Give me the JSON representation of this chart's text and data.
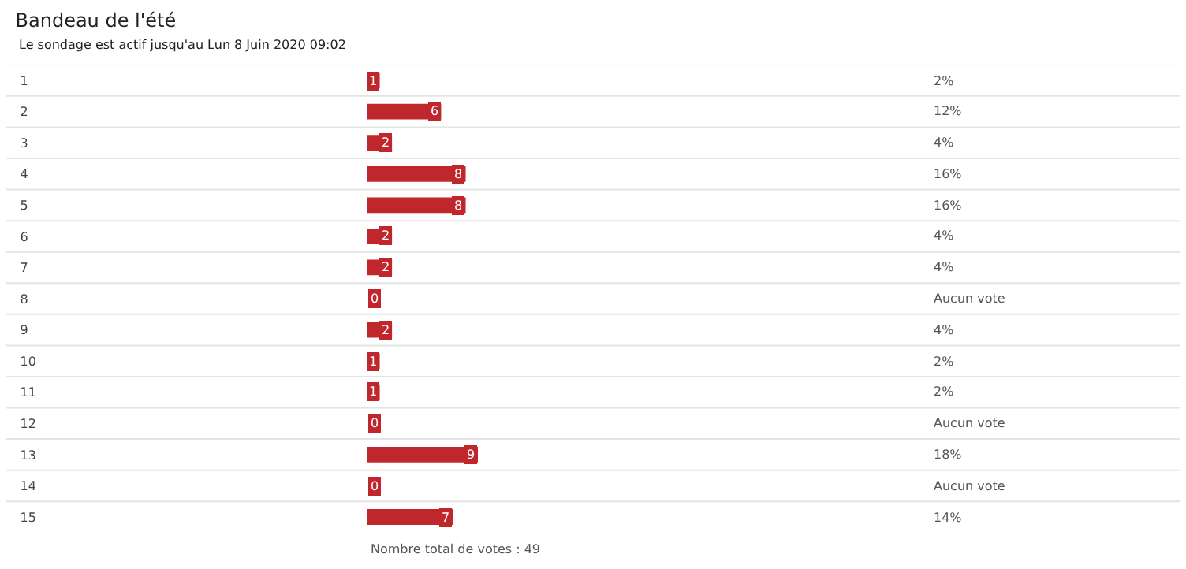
{
  "chart_data": {
    "type": "bar",
    "orientation": "horizontal",
    "title": "Bandeau de l'été",
    "subtitle": "Le sondage est actif jusqu'au Lun 8 Juin 2020 09:02",
    "categories": [
      "1",
      "2",
      "3",
      "4",
      "5",
      "6",
      "7",
      "8",
      "9",
      "10",
      "11",
      "12",
      "13",
      "14",
      "15"
    ],
    "values": [
      1,
      6,
      2,
      8,
      8,
      2,
      2,
      0,
      2,
      1,
      1,
      0,
      9,
      0,
      7
    ],
    "color": "#c0272d",
    "data_labels": true,
    "annotations": [
      "2%",
      "12%",
      "4%",
      "16%",
      "16%",
      "4%",
      "4%",
      "Aucun vote",
      "4%",
      "2%",
      "2%",
      "Aucun vote",
      "18%",
      "Aucun vote",
      "14%",
      "Nombre total de votes : 49"
    ],
    "grid": "y",
    "legend": false
  }
}
